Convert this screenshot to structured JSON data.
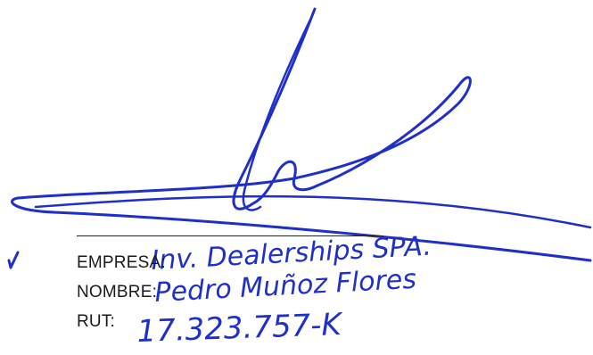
{
  "ink_color": "#1f2fc9",
  "line_color": "#222222",
  "labels": {
    "empresa": "EMPRESA:",
    "nombre": "NOMBRE:",
    "rut": "RUT:"
  },
  "handwritten": {
    "empresa": "Inv. Dealerships SPA.",
    "nombre": "Pedro Muñoz Flores",
    "rut": "17.323.757-K"
  }
}
